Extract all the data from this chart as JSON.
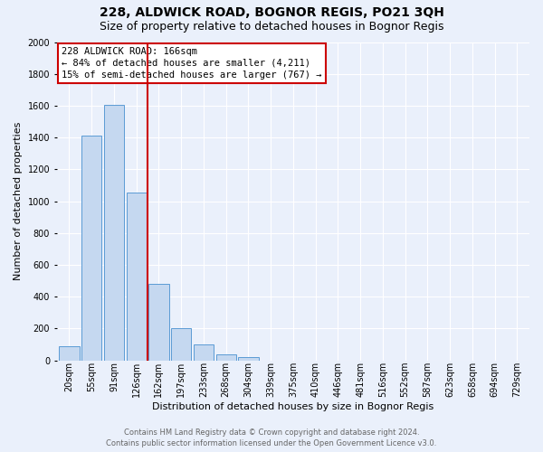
{
  "title": "228, ALDWICK ROAD, BOGNOR REGIS, PO21 3QH",
  "subtitle": "Size of property relative to detached houses in Bognor Regis",
  "xlabel": "Distribution of detached houses by size in Bognor Regis",
  "ylabel": "Number of detached properties",
  "categories": [
    "20sqm",
    "55sqm",
    "91sqm",
    "126sqm",
    "162sqm",
    "197sqm",
    "233sqm",
    "268sqm",
    "304sqm",
    "339sqm",
    "375sqm",
    "410sqm",
    "446sqm",
    "481sqm",
    "516sqm",
    "552sqm",
    "587sqm",
    "623sqm",
    "658sqm",
    "694sqm",
    "729sqm"
  ],
  "values": [
    88,
    1414,
    1605,
    1055,
    480,
    203,
    100,
    40,
    20,
    0,
    0,
    0,
    0,
    0,
    0,
    0,
    0,
    0,
    0,
    0,
    0
  ],
  "bar_color": "#c5d8f0",
  "bar_edge_color": "#5b9bd5",
  "red_line_x": 3.5,
  "annotation_text": "228 ALDWICK ROAD: 166sqm\n← 84% of detached houses are smaller (4,211)\n15% of semi-detached houses are larger (767) →",
  "annotation_box_facecolor": "#ffffff",
  "annotation_box_edgecolor": "#cc0000",
  "ylim": [
    0,
    2000
  ],
  "yticks": [
    0,
    200,
    400,
    600,
    800,
    1000,
    1200,
    1400,
    1600,
    1800,
    2000
  ],
  "footer1": "Contains HM Land Registry data © Crown copyright and database right 2024.",
  "footer2": "Contains public sector information licensed under the Open Government Licence v3.0.",
  "bg_color": "#eaf0fb",
  "plot_bg_color": "#eaf0fb",
  "grid_color": "#ffffff",
  "title_fontsize": 10,
  "subtitle_fontsize": 9,
  "ylabel_fontsize": 8,
  "xlabel_fontsize": 8,
  "tick_fontsize": 7,
  "annotation_fontsize": 7.5,
  "footer_fontsize": 6
}
